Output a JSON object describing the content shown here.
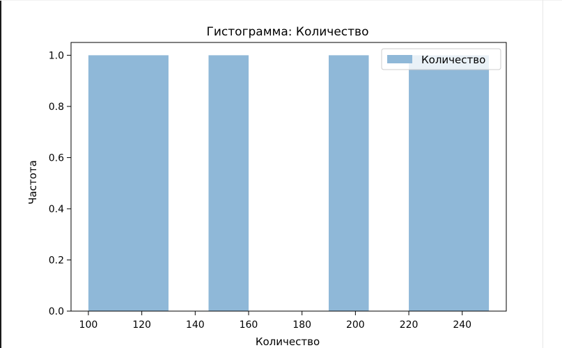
{
  "chart_data": {
    "type": "bar",
    "title": "Гистограмма: Количество",
    "xlabel": "Количество",
    "ylabel": "Частота",
    "xlim": [
      93.5,
      256.5
    ],
    "ylim": [
      0,
      1.05
    ],
    "xticks": [
      100,
      120,
      140,
      160,
      180,
      200,
      220,
      240
    ],
    "yticks": [
      0.0,
      0.2,
      0.4,
      0.6,
      0.8,
      1.0
    ],
    "ytick_labels": [
      "0.0",
      "0.2",
      "0.4",
      "0.6",
      "0.8",
      "1.0"
    ],
    "bins": [
      {
        "start": 100,
        "end": 130,
        "count": 1
      },
      {
        "start": 130,
        "end": 145,
        "count": 0
      },
      {
        "start": 145,
        "end": 160,
        "count": 1
      },
      {
        "start": 160,
        "end": 175,
        "count": 0
      },
      {
        "start": 175,
        "end": 190,
        "count": 0
      },
      {
        "start": 190,
        "end": 205,
        "count": 1
      },
      {
        "start": 205,
        "end": 220,
        "count": 0
      },
      {
        "start": 220,
        "end": 250,
        "count": 1
      }
    ],
    "series": [
      {
        "name": "Количество",
        "color": "#8fb8d8"
      }
    ],
    "legend": {
      "position": "top-right",
      "entries": [
        "Количество"
      ]
    },
    "grid": false
  }
}
